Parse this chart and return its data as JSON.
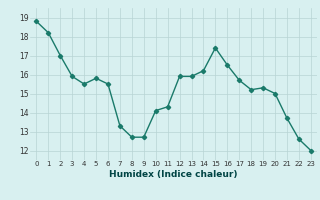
{
  "x": [
    0,
    1,
    2,
    3,
    4,
    5,
    6,
    7,
    8,
    9,
    10,
    11,
    12,
    13,
    14,
    15,
    16,
    17,
    18,
    19,
    20,
    21,
    22,
    23
  ],
  "y": [
    18.8,
    18.2,
    17.0,
    15.9,
    15.5,
    15.8,
    15.5,
    13.3,
    12.7,
    12.7,
    14.1,
    14.3,
    15.9,
    15.9,
    16.2,
    17.4,
    16.5,
    15.7,
    15.2,
    15.3,
    15.0,
    13.7,
    12.6,
    12.0
  ],
  "line_color": "#1a7a6a",
  "marker": "D",
  "marker_size": 2.2,
  "bg_color": "#d8f0f0",
  "grid_color": "#b8d4d4",
  "xlabel": "Humidex (Indice chaleur)",
  "yticks": [
    12,
    13,
    14,
    15,
    16,
    17,
    18,
    19
  ],
  "xticks": [
    0,
    1,
    2,
    3,
    4,
    5,
    6,
    7,
    8,
    9,
    10,
    11,
    12,
    13,
    14,
    15,
    16,
    17,
    18,
    19,
    20,
    21,
    22,
    23
  ],
  "ylim": [
    11.5,
    19.5
  ],
  "xlim": [
    -0.5,
    23.5
  ]
}
